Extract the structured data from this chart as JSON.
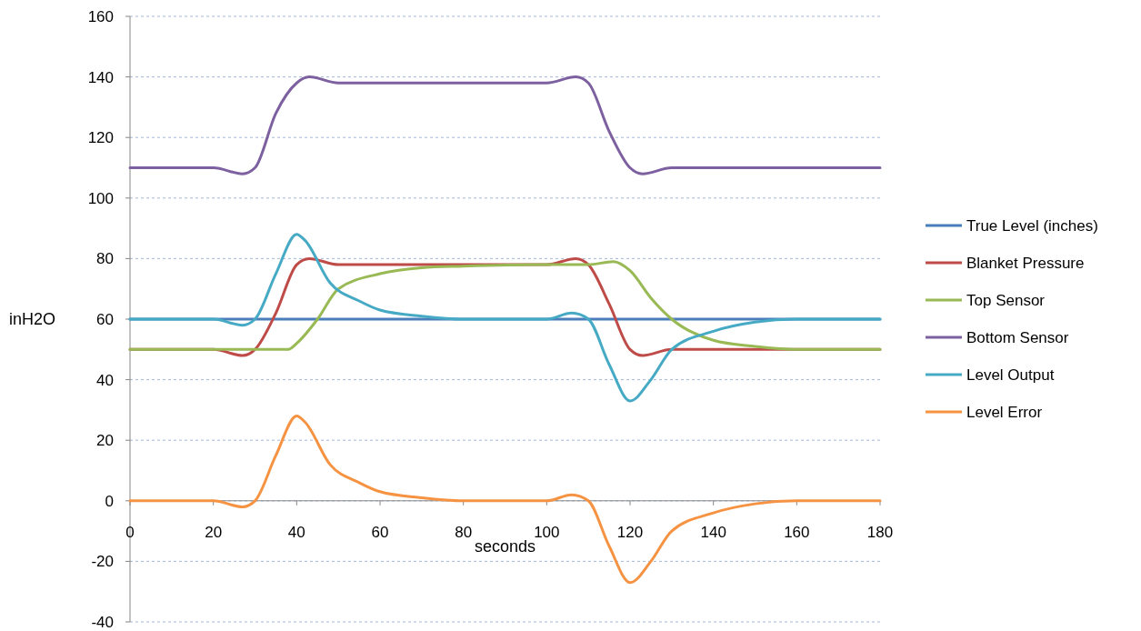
{
  "chart_data": {
    "type": "line",
    "xlabel": "seconds",
    "ylabel": "inH2O",
    "xlim": [
      0,
      180
    ],
    "ylim": [
      -40,
      160
    ],
    "xticks": [
      0,
      20,
      40,
      60,
      80,
      100,
      120,
      140,
      160,
      180
    ],
    "yticks": [
      -40,
      -20,
      0,
      20,
      40,
      60,
      80,
      100,
      120,
      140,
      160
    ],
    "grid": "y",
    "legend": "right",
    "marker": "none",
    "line_style": "solid",
    "series": [
      {
        "name": "True Level (inches)",
        "color": "#4a7ebb",
        "x": [
          0,
          20,
          40,
          60,
          80,
          100,
          120,
          140,
          160,
          180
        ],
        "values": [
          60,
          60,
          60,
          60,
          60,
          60,
          60,
          60,
          60,
          60
        ]
      },
      {
        "name": "Blanket Pressure",
        "color": "#be4b48",
        "x": [
          0,
          20,
          27,
          30,
          35,
          40,
          43,
          50,
          60,
          80,
          100,
          107,
          110,
          115,
          120,
          123,
          130,
          150,
          180
        ],
        "values": [
          50,
          50,
          48,
          50,
          62,
          78,
          80,
          78,
          78,
          78,
          78,
          80,
          78,
          65,
          50,
          48,
          50,
          50,
          50
        ]
      },
      {
        "name": "Top Sensor",
        "color": "#98b954",
        "x": [
          0,
          20,
          30,
          38,
          40,
          45,
          50,
          60,
          70,
          80,
          100,
          110,
          116,
          120,
          125,
          130,
          140,
          150,
          160,
          180
        ],
        "values": [
          50,
          50,
          50,
          50,
          52,
          60,
          70,
          75,
          77,
          77.5,
          78,
          78,
          79,
          76,
          67,
          60,
          53,
          51,
          50,
          50
        ]
      },
      {
        "name": "Bottom Sensor",
        "color": "#7d60a0",
        "x": [
          0,
          20,
          27,
          30,
          35,
          40,
          43,
          50,
          60,
          80,
          100,
          107,
          110,
          115,
          120,
          123,
          130,
          150,
          180
        ],
        "values": [
          110,
          110,
          108,
          110,
          128,
          138,
          140,
          138,
          138,
          138,
          138,
          140,
          138,
          122,
          110,
          108,
          110,
          110,
          110
        ]
      },
      {
        "name": "Level Output",
        "color": "#46aac5",
        "x": [
          0,
          20,
          27,
          30,
          35,
          40,
          42,
          48,
          55,
          60,
          70,
          80,
          100,
          106,
          110,
          115,
          120,
          125,
          130,
          140,
          150,
          160,
          180
        ],
        "values": [
          60,
          60,
          58,
          60,
          75,
          88,
          86,
          72,
          66,
          63,
          61,
          60,
          60,
          62,
          60,
          45,
          33,
          40,
          50,
          56,
          59,
          60,
          60
        ]
      },
      {
        "name": "Level Error",
        "color": "#f59342",
        "x": [
          0,
          20,
          27,
          30,
          35,
          40,
          42,
          48,
          55,
          60,
          70,
          80,
          100,
          106,
          110,
          115,
          120,
          125,
          130,
          140,
          150,
          160,
          180
        ],
        "values": [
          0,
          0,
          -2,
          0,
          15,
          28,
          26,
          12,
          6,
          3,
          1,
          0,
          0,
          2,
          0,
          -15,
          -27,
          -20,
          -10,
          -4,
          -1,
          0,
          0
        ]
      }
    ]
  }
}
